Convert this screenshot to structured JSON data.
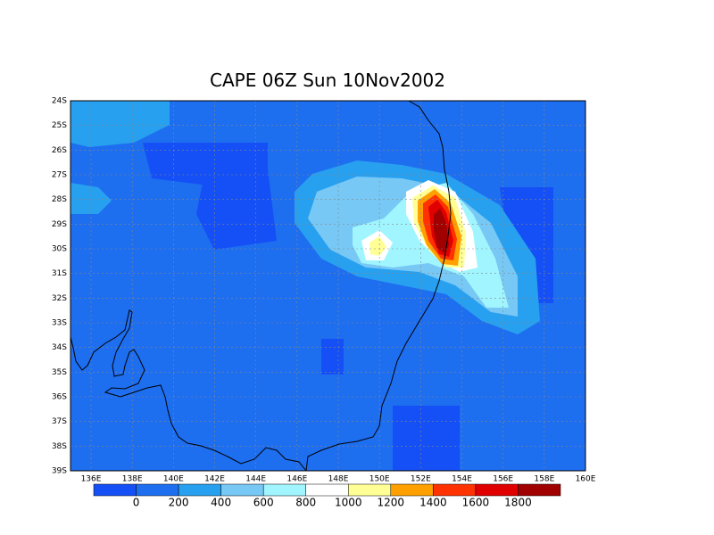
{
  "map": {
    "title": "CAPE 06Z Sun 10Nov2002",
    "lat_labels": [
      "24S",
      "25S",
      "26S",
      "27S",
      "28S",
      "29S",
      "30S",
      "31S",
      "32S",
      "33S",
      "34S",
      "35S",
      "36S",
      "37S",
      "38S",
      "39S"
    ],
    "lon_labels": [
      "136E",
      "138E",
      "140E",
      "142E",
      "144E",
      "146E",
      "148E",
      "150E",
      "152E",
      "154E",
      "156E",
      "158E",
      "160E"
    ],
    "colorbar": {
      "levels": [
        0,
        200,
        400,
        600,
        800,
        1000,
        1200,
        1400,
        1600,
        1800
      ],
      "colors": [
        "#1450f5",
        "#1e6ef0",
        "#28a0f0",
        "#78c8f5",
        "#a0f5ff",
        "#ffffff",
        "#ffff96",
        "#ffa000",
        "#ff3200",
        "#e10000",
        "#a00000"
      ]
    }
  }
}
